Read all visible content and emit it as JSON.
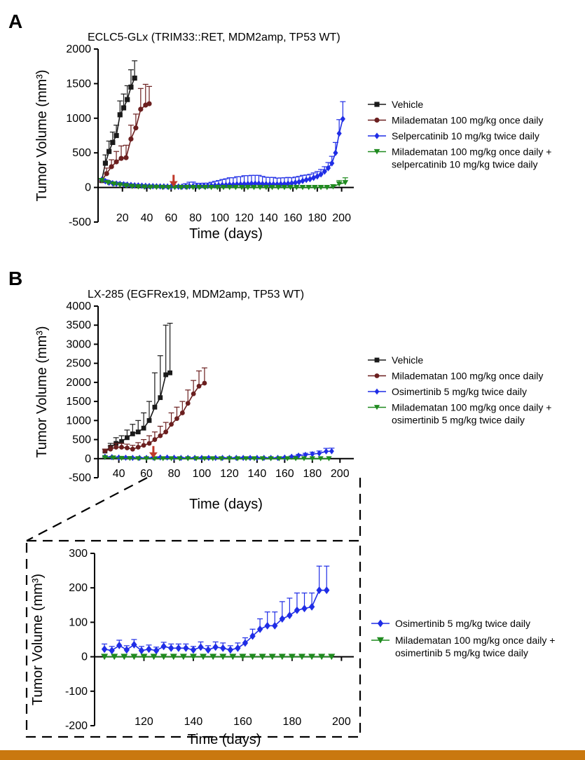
{
  "colors": {
    "vehicle": "#1a1a1a",
    "milademetan": "#6b1f1f",
    "selective": "#1f2de6",
    "combination": "#1f8a1f",
    "arrow": "#c0392b",
    "bottom_band": "#c9780f"
  },
  "panels": {
    "a": {
      "letter": "A",
      "title": "ECLC5-GLx (TRIM33::RET, MDM2amp, TP53 WT)"
    },
    "b": {
      "letter": "B",
      "title": "LX-285 (EGFRex19, MDM2amp, TP53 WT)"
    }
  },
  "chart_data": [
    {
      "id": "A",
      "type": "line",
      "title": "ECLC5-GLx (TRIM33::RET, MDM2amp, TP53 WT)",
      "xlabel": "Time (days)",
      "ylabel": "Tumor Volume (mm³)",
      "xlim": [
        0,
        210
      ],
      "ylim": [
        -500,
        2000
      ],
      "xticks": [
        20,
        40,
        60,
        80,
        100,
        120,
        140,
        160,
        180,
        200
      ],
      "yticks": [
        -500,
        0,
        500,
        1000,
        1500,
        2000
      ],
      "arrow_x": 62,
      "legend_position": "right",
      "series": [
        {
          "name": "Vehicle",
          "color_key": "vehicle",
          "marker": "square",
          "x": [
            3,
            6,
            9,
            12,
            15,
            18,
            21,
            24,
            27,
            30
          ],
          "y": [
            100,
            350,
            520,
            650,
            750,
            1050,
            1150,
            1270,
            1450,
            1580
          ],
          "err": [
            30,
            120,
            150,
            150,
            150,
            200,
            200,
            200,
            250,
            250
          ]
        },
        {
          "name": "Miladematan 100 mg/kg once daily",
          "color_key": "milademetan",
          "marker": "circle",
          "x": [
            3,
            7,
            11,
            15,
            19,
            23,
            27,
            31,
            35,
            39,
            42
          ],
          "y": [
            100,
            200,
            300,
            370,
            420,
            430,
            700,
            860,
            1130,
            1190,
            1210
          ],
          "err": [
            30,
            80,
            100,
            150,
            180,
            180,
            200,
            200,
            300,
            300,
            250
          ]
        },
        {
          "name": "Selpercatinib 10 mg/kg twice daily",
          "color_key": "selective",
          "marker": "diamond",
          "x": [
            3,
            6,
            9,
            12,
            15,
            18,
            21,
            24,
            27,
            30,
            33,
            36,
            39,
            42,
            45,
            48,
            51,
            54,
            57,
            60,
            63,
            66,
            69,
            72,
            75,
            78,
            81,
            84,
            87,
            90,
            93,
            96,
            99,
            102,
            105,
            108,
            111,
            114,
            117,
            120,
            123,
            126,
            129,
            132,
            135,
            138,
            141,
            144,
            147,
            150,
            153,
            156,
            159,
            162,
            165,
            168,
            171,
            174,
            177,
            180,
            183,
            186,
            189,
            192,
            195,
            198,
            201
          ],
          "y": [
            110,
            90,
            70,
            60,
            55,
            50,
            45,
            40,
            35,
            30,
            28,
            25,
            22,
            20,
            18,
            16,
            15,
            14,
            13,
            12,
            12,
            12,
            12,
            14,
            16,
            18,
            20,
            20,
            22,
            22,
            25,
            28,
            30,
            35,
            35,
            40,
            40,
            45,
            45,
            50,
            50,
            55,
            55,
            55,
            50,
            48,
            45,
            45,
            45,
            48,
            50,
            55,
            60,
            70,
            80,
            95,
            110,
            120,
            140,
            160,
            190,
            230,
            280,
            350,
            500,
            780,
            990
          ],
          "err": [
            20,
            20,
            20,
            20,
            20,
            20,
            20,
            15,
            15,
            15,
            15,
            15,
            15,
            15,
            15,
            15,
            15,
            15,
            15,
            15,
            15,
            15,
            20,
            40,
            60,
            60,
            40,
            40,
            40,
            40,
            50,
            60,
            70,
            80,
            90,
            100,
            100,
            110,
            110,
            120,
            120,
            120,
            120,
            120,
            110,
            100,
            100,
            100,
            90,
            90,
            90,
            90,
            80,
            80,
            80,
            80,
            70,
            70,
            70,
            70,
            70,
            70,
            80,
            100,
            150,
            200,
            250
          ]
        },
        {
          "name": "Miladematan 100 mg/kg once daily +\nselpercatinib 10 mg/kg twice daily",
          "color_key": "combination",
          "marker": "triangle-down",
          "x": [
            3,
            8,
            13,
            18,
            23,
            28,
            33,
            38,
            43,
            48,
            53,
            58,
            63,
            68,
            73,
            78,
            83,
            88,
            93,
            98,
            103,
            108,
            113,
            118,
            123,
            128,
            133,
            138,
            143,
            148,
            153,
            158,
            163,
            168,
            173,
            178,
            183,
            188,
            193,
            198,
            203
          ],
          "y": [
            100,
            70,
            50,
            35,
            25,
            15,
            10,
            5,
            3,
            2,
            1,
            0,
            0,
            0,
            0,
            0,
            0,
            0,
            0,
            0,
            0,
            0,
            0,
            0,
            0,
            0,
            0,
            0,
            0,
            0,
            0,
            0,
            0,
            0,
            0,
            0,
            0,
            0,
            10,
            50,
            70
          ],
          "err": [
            30,
            20,
            15,
            10,
            10,
            5,
            5,
            5,
            5,
            5,
            5,
            0,
            0,
            0,
            0,
            0,
            0,
            0,
            0,
            0,
            0,
            0,
            0,
            0,
            0,
            0,
            0,
            0,
            0,
            0,
            0,
            0,
            0,
            0,
            0,
            0,
            0,
            0,
            30,
            50,
            70
          ]
        }
      ]
    },
    {
      "id": "B",
      "type": "line",
      "title": "LX-285 (EGFRex19, MDM2amp, TP53 WT)",
      "xlabel": "Time (days)",
      "ylabel": "Tumor Volume (mm³)",
      "xlim": [
        25,
        210
      ],
      "ylim": [
        -500,
        4000
      ],
      "xticks": [
        40,
        60,
        80,
        100,
        120,
        140,
        160,
        180,
        200
      ],
      "yticks": [
        -500,
        0,
        500,
        1000,
        1500,
        2000,
        2500,
        3000,
        3500,
        4000
      ],
      "arrow_x": 65,
      "legend_position": "right",
      "series": [
        {
          "name": "Vehicle",
          "color_key": "vehicle",
          "marker": "square",
          "x": [
            30,
            34,
            38,
            42,
            46,
            50,
            54,
            58,
            62,
            66,
            70,
            74,
            77
          ],
          "y": [
            200,
            300,
            400,
            450,
            550,
            650,
            700,
            800,
            1000,
            1350,
            1600,
            2200,
            2250
          ],
          "err": [
            50,
            100,
            150,
            150,
            200,
            250,
            300,
            400,
            500,
            900,
            1100,
            1300,
            1300
          ]
        },
        {
          "name": "Miladematan 100 mg/kg once daily",
          "color_key": "milademetan",
          "marker": "circle",
          "x": [
            30,
            34,
            38,
            42,
            46,
            50,
            54,
            58,
            62,
            66,
            70,
            74,
            78,
            82,
            86,
            90,
            94,
            98,
            102
          ],
          "y": [
            200,
            250,
            300,
            300,
            280,
            250,
            300,
            350,
            400,
            500,
            600,
            700,
            900,
            1050,
            1200,
            1450,
            1700,
            1900,
            1980
          ],
          "err": [
            50,
            80,
            100,
            100,
            100,
            100,
            120,
            150,
            200,
            200,
            250,
            250,
            300,
            300,
            300,
            350,
            350,
            400,
            400
          ]
        },
        {
          "name": "Osimertinib 5 mg/kg twice daily",
          "color_key": "selective",
          "marker": "diamond",
          "x": [
            30,
            35,
            40,
            45,
            50,
            55,
            60,
            65,
            70,
            75,
            80,
            85,
            90,
            95,
            100,
            105,
            110,
            115,
            120,
            125,
            130,
            135,
            140,
            145,
            150,
            155,
            160,
            165,
            170,
            175,
            180,
            185,
            190,
            194
          ],
          "y": [
            50,
            40,
            30,
            25,
            20,
            20,
            20,
            25,
            30,
            30,
            25,
            20,
            20,
            20,
            20,
            20,
            20,
            20,
            20,
            20,
            20,
            20,
            20,
            20,
            20,
            20,
            30,
            50,
            80,
            100,
            120,
            140,
            190,
            195
          ],
          "err": [
            20,
            20,
            20,
            15,
            15,
            15,
            15,
            20,
            20,
            20,
            15,
            15,
            15,
            15,
            15,
            15,
            15,
            15,
            15,
            15,
            15,
            15,
            15,
            15,
            15,
            15,
            15,
            20,
            30,
            40,
            50,
            60,
            80,
            80
          ]
        },
        {
          "name": "Miladematan 100 mg/kg once daily +\nosimertinib 5 mg/kg twice daily",
          "color_key": "combination",
          "marker": "triangle-down",
          "x": [
            30,
            36,
            42,
            48,
            54,
            60,
            66,
            72,
            78,
            84,
            90,
            96,
            102,
            108,
            114,
            120,
            126,
            132,
            138,
            144,
            150,
            156,
            162,
            168,
            174,
            180,
            186,
            192
          ],
          "y": [
            30,
            20,
            10,
            5,
            2,
            0,
            0,
            0,
            0,
            0,
            0,
            0,
            0,
            0,
            0,
            0,
            0,
            0,
            0,
            0,
            0,
            0,
            0,
            0,
            0,
            0,
            0,
            0
          ],
          "err": [
            10,
            10,
            5,
            5,
            2,
            0,
            0,
            0,
            0,
            0,
            0,
            0,
            0,
            0,
            0,
            0,
            0,
            0,
            0,
            0,
            0,
            0,
            0,
            0,
            0,
            0,
            0,
            0
          ]
        }
      ]
    },
    {
      "id": "B-inset",
      "type": "line",
      "title": "",
      "xlabel": "Time (days)",
      "ylabel": "Tumor Volume (mm³)",
      "xlim": [
        100,
        205
      ],
      "ylim": [
        -200,
        300
      ],
      "xticks": [
        120,
        140,
        160,
        180,
        200
      ],
      "yticks": [
        -200,
        -100,
        0,
        100,
        200,
        300
      ],
      "legend_position": "right",
      "series": [
        {
          "name": "Osimertinib 5 mg/kg twice daily",
          "color_key": "selective",
          "marker": "diamond",
          "x": [
            104,
            107,
            110,
            113,
            116,
            119,
            122,
            125,
            128,
            131,
            134,
            137,
            140,
            143,
            146,
            149,
            152,
            155,
            158,
            161,
            164,
            167,
            170,
            173,
            176,
            179,
            182,
            185,
            188,
            191,
            194
          ],
          "y": [
            22,
            18,
            33,
            20,
            35,
            18,
            22,
            18,
            30,
            25,
            25,
            25,
            20,
            28,
            20,
            28,
            25,
            20,
            25,
            40,
            60,
            80,
            90,
            90,
            110,
            120,
            135,
            140,
            145,
            193,
            193
          ],
          "err": [
            15,
            12,
            15,
            12,
            15,
            12,
            12,
            10,
            12,
            12,
            12,
            12,
            10,
            15,
            12,
            15,
            15,
            12,
            15,
            15,
            20,
            30,
            40,
            40,
            50,
            50,
            50,
            45,
            40,
            70,
            70
          ]
        },
        {
          "name": "Miladematan 100 mg/kg once daily +\nosimertinib 5 mg/kg twice daily",
          "color_key": "combination",
          "marker": "triangle-down",
          "x": [
            104,
            108,
            112,
            116,
            120,
            124,
            128,
            132,
            136,
            140,
            144,
            148,
            152,
            156,
            160,
            164,
            168,
            172,
            176,
            180,
            184,
            188,
            192,
            196
          ],
          "y": [
            0,
            0,
            0,
            0,
            0,
            0,
            0,
            0,
            0,
            0,
            0,
            0,
            0,
            0,
            0,
            0,
            0,
            0,
            0,
            0,
            0,
            0,
            0,
            0
          ],
          "err": [
            0,
            0,
            0,
            0,
            0,
            0,
            0,
            0,
            0,
            0,
            0,
            0,
            0,
            0,
            0,
            0,
            0,
            0,
            0,
            0,
            0,
            0,
            0,
            0
          ]
        }
      ]
    }
  ]
}
